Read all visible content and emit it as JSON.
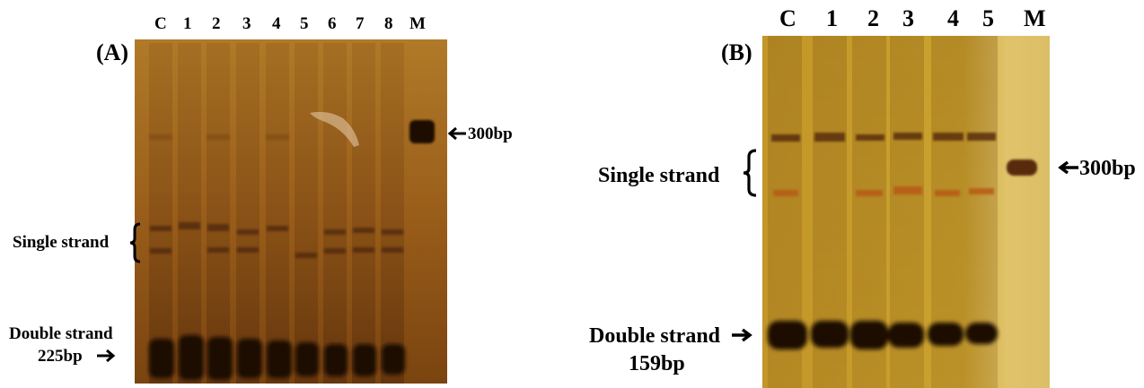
{
  "panels": [
    {
      "label": "(A)",
      "lanes": [
        "C",
        "1",
        "2",
        "3",
        "4",
        "5",
        "6",
        "7",
        "8",
        "M"
      ],
      "annotations": {
        "single_strand": "Single strand",
        "marker_size": "300bp",
        "double_strand_line1": "Double strand",
        "double_strand_line2": "225bp"
      }
    },
    {
      "label": "(B)",
      "lanes": [
        "C",
        "1",
        "2",
        "3",
        "4",
        "5",
        "M"
      ],
      "annotations": {
        "single_strand": "Single strand",
        "marker_size": "300bp",
        "double_strand_line1": "Double strand",
        "double_strand_line2": "159bp"
      }
    }
  ],
  "colors": {
    "gel_a": "#a0661e",
    "gel_b": "#caa02c",
    "band_dark": "#1d0d05"
  }
}
